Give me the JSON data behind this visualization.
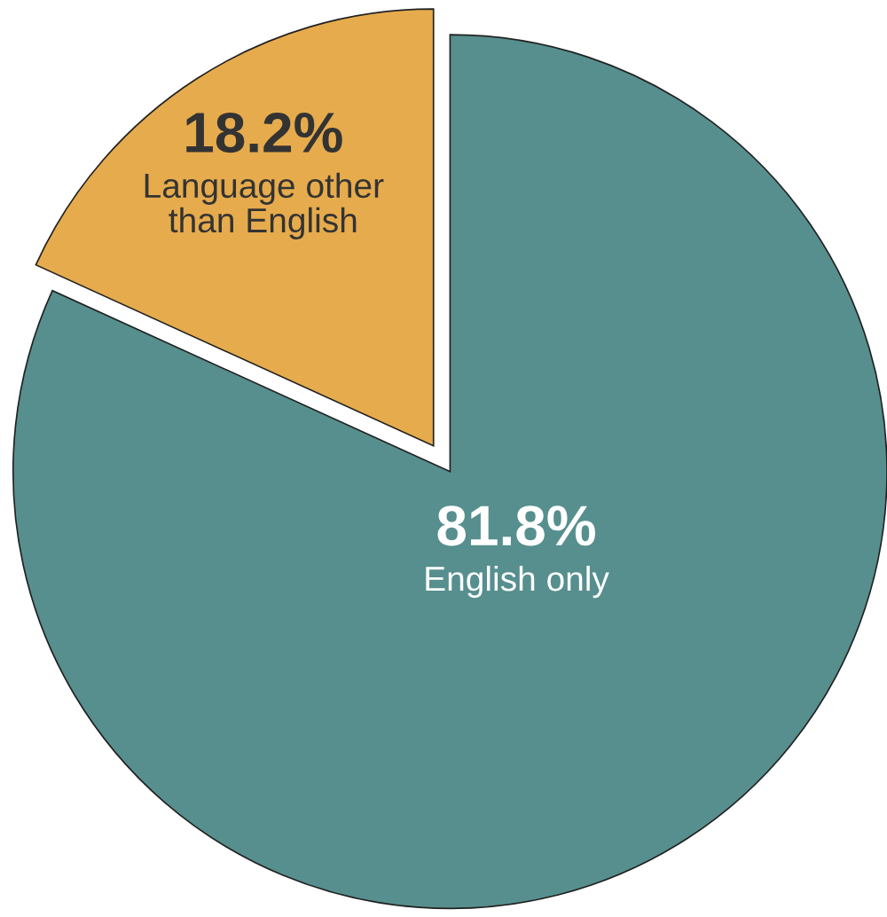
{
  "chart_data": {
    "type": "pie",
    "categories": [
      "Language other than English",
      "English only"
    ],
    "values": [
      18.2,
      81.8
    ],
    "colors": [
      "#e6ab4c",
      "#568f8e"
    ],
    "value_labels": [
      "18.2%",
      "81.8%"
    ]
  }
}
